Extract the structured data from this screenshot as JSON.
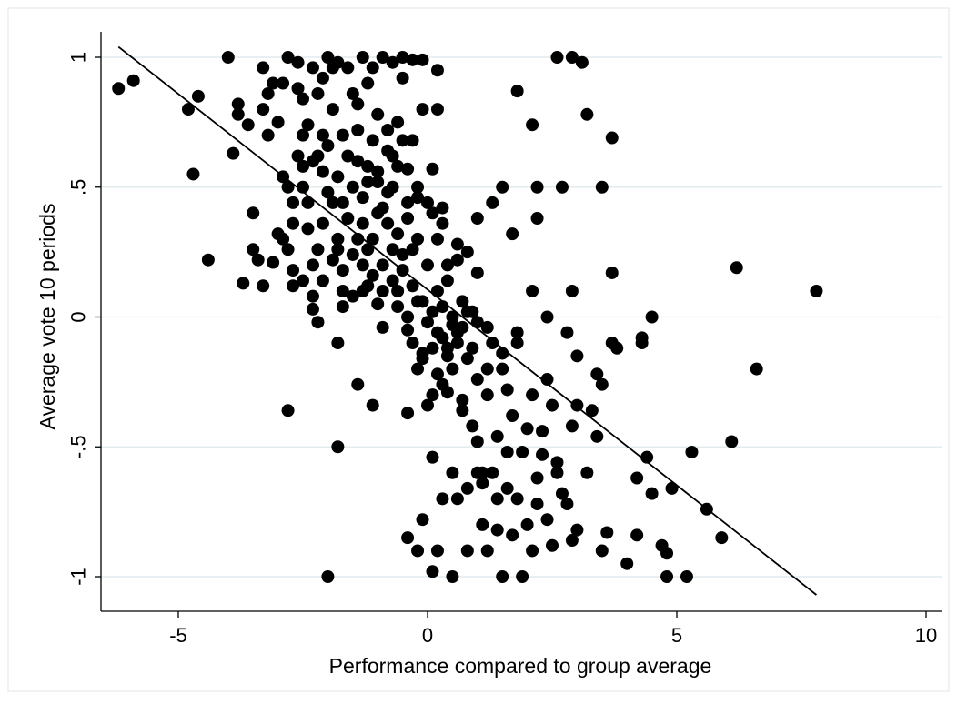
{
  "chart_data": {
    "type": "scatter",
    "title": "",
    "xlabel": "Performance compared to group average",
    "ylabel": "Average vote 10 periods",
    "xlim": [
      -6.5,
      10.5
    ],
    "ylim": [
      -1.1,
      1.1
    ],
    "xticks": [
      -5,
      0,
      5,
      10
    ],
    "xtick_labels": [
      "-5",
      "0",
      "5",
      "10"
    ],
    "yticks": [
      1,
      0.5,
      0,
      -0.5,
      -1
    ],
    "ytick_labels": [
      "1",
      ".5",
      "0",
      "-.5",
      "-1"
    ],
    "grid": "horizontal",
    "legend": "none",
    "colors": {
      "points": "#000000",
      "grid": "#dbe8ec",
      "fit_line": "#000000"
    },
    "fit_line": {
      "x": [
        -6.2,
        7.8
      ],
      "y": [
        1.04,
        -1.07
      ]
    },
    "points": [
      [
        -6.2,
        0.88
      ],
      [
        -5.9,
        0.91
      ],
      [
        -4.8,
        0.8
      ],
      [
        -4.6,
        0.85
      ],
      [
        -4.7,
        0.55
      ],
      [
        -4.4,
        0.22
      ],
      [
        -4.0,
        1.0
      ],
      [
        -3.9,
        0.63
      ],
      [
        -3.8,
        0.82
      ],
      [
        -3.8,
        0.78
      ],
      [
        -3.6,
        0.74
      ],
      [
        -3.5,
        0.4
      ],
      [
        -3.5,
        0.26
      ],
      [
        -3.4,
        0.22
      ],
      [
        -3.3,
        0.8
      ],
      [
        -3.3,
        0.96
      ],
      [
        -3.2,
        0.86
      ],
      [
        -3.2,
        0.7
      ],
      [
        -3.1,
        0.9
      ],
      [
        -3.1,
        0.21
      ],
      [
        -3.0,
        0.75
      ],
      [
        -2.9,
        0.3
      ],
      [
        -2.9,
        0.9
      ],
      [
        -2.8,
        0.26
      ],
      [
        -2.8,
        0.5
      ],
      [
        -2.7,
        0.44
      ],
      [
        -2.7,
        0.12
      ],
      [
        -2.6,
        0.98
      ],
      [
        -2.6,
        0.88
      ],
      [
        -2.5,
        0.58
      ],
      [
        -2.5,
        0.7
      ],
      [
        -2.4,
        0.74
      ],
      [
        -2.4,
        0.34
      ],
      [
        -2.3,
        0.2
      ],
      [
        -2.3,
        0.03
      ],
      [
        -2.2,
        0.62
      ],
      [
        -2.2,
        0.86
      ],
      [
        -2.1,
        0.92
      ],
      [
        -2.1,
        0.36
      ],
      [
        -2.0,
        0.48
      ],
      [
        -2.0,
        0.66
      ],
      [
        -1.9,
        0.96
      ],
      [
        -1.9,
        0.8
      ],
      [
        -1.8,
        0.54
      ],
      [
        -1.8,
        0.3
      ],
      [
        -1.7,
        0.1
      ],
      [
        -1.7,
        0.44
      ],
      [
        -1.6,
        0.96
      ],
      [
        -1.6,
        0.62
      ],
      [
        -1.5,
        0.24
      ],
      [
        -1.5,
        0.5
      ],
      [
        -1.4,
        0.72
      ],
      [
        -1.4,
        0.82
      ],
      [
        -1.3,
        0.46
      ],
      [
        -1.3,
        0.36
      ],
      [
        -1.2,
        0.12
      ],
      [
        -1.2,
        0.58
      ],
      [
        -1.1,
        0.68
      ],
      [
        -1.1,
        0.3
      ],
      [
        -1.0,
        0.52
      ],
      [
        -1.0,
        0.05
      ],
      [
        -0.9,
        0.2
      ],
      [
        -0.9,
        0.42
      ],
      [
        -0.8,
        0.64
      ],
      [
        -0.8,
        0.36
      ],
      [
        -0.7,
        0.5
      ],
      [
        -0.7,
        0.26
      ],
      [
        -0.6,
        0.58
      ],
      [
        -0.6,
        0.1
      ],
      [
        -0.5,
        0.68
      ],
      [
        -0.5,
        0.24
      ],
      [
        -0.4,
        0.0
      ],
      [
        -0.4,
        0.44
      ],
      [
        -0.3,
        0.12
      ],
      [
        -0.3,
        -0.1
      ],
      [
        -0.2,
        0.3
      ],
      [
        -0.2,
        0.5
      ],
      [
        -0.1,
        0.06
      ],
      [
        -0.1,
        -0.16
      ],
      [
        0.0,
        0.2
      ],
      [
        0.0,
        -0.02
      ],
      [
        0.1,
        0.4
      ],
      [
        0.1,
        -0.3
      ],
      [
        0.2,
        0.1
      ],
      [
        0.2,
        -0.06
      ],
      [
        0.3,
        -0.26
      ],
      [
        0.3,
        0.04
      ],
      [
        0.4,
        -0.12
      ],
      [
        0.4,
        0.14
      ],
      [
        0.5,
        -0.2
      ],
      [
        0.5,
        0.0
      ],
      [
        0.6,
        -0.1
      ],
      [
        0.6,
        0.22
      ],
      [
        0.7,
        -0.32
      ],
      [
        0.7,
        -0.04
      ],
      [
        0.8,
        0.02
      ],
      [
        0.8,
        -0.16
      ],
      [
        0.9,
        -0.42
      ],
      [
        1.0,
        -0.02
      ],
      [
        1.0,
        -0.24
      ],
      [
        1.1,
        -0.6
      ],
      [
        1.2,
        -0.3
      ],
      [
        1.3,
        -0.1
      ],
      [
        1.4,
        -0.46
      ],
      [
        1.5,
        -0.2
      ],
      [
        1.6,
        -0.66
      ],
      [
        1.7,
        -0.38
      ],
      [
        1.8,
        -0.1
      ],
      [
        1.9,
        -0.52
      ],
      [
        2.0,
        -0.8
      ],
      [
        2.1,
        -0.3
      ],
      [
        2.2,
        -0.62
      ],
      [
        2.3,
        -0.44
      ],
      [
        2.4,
        -0.78
      ],
      [
        2.5,
        -0.34
      ],
      [
        2.6,
        -0.56
      ],
      [
        2.8,
        -0.06
      ],
      [
        2.9,
        -0.86
      ],
      [
        3.0,
        -0.34
      ],
      [
        3.2,
        -0.6
      ],
      [
        3.4,
        -0.22
      ],
      [
        3.5,
        -0.9
      ],
      [
        3.7,
        -0.1
      ],
      [
        4.0,
        -0.95
      ],
      [
        4.2,
        -0.62
      ],
      [
        4.3,
        -0.1
      ],
      [
        4.5,
        -0.68
      ],
      [
        4.7,
        -0.88
      ],
      [
        4.8,
        -1.0
      ],
      [
        5.2,
        -1.0
      ],
      [
        5.3,
        -0.52
      ],
      [
        5.6,
        -0.74
      ],
      [
        5.9,
        -0.85
      ],
      [
        6.1,
        -0.48
      ],
      [
        6.6,
        -0.2
      ],
      [
        4.5,
        0.0
      ],
      [
        4.3,
        -0.08
      ],
      [
        3.8,
        -0.12
      ],
      [
        3.3,
        -0.36
      ],
      [
        2.7,
        -0.68
      ],
      [
        1.5,
        -1.0
      ],
      [
        1.9,
        -1.0
      ],
      [
        0.5,
        -1.0
      ],
      [
        0.1,
        -0.98
      ],
      [
        -0.2,
        -0.9
      ],
      [
        -0.4,
        -0.85
      ],
      [
        0.2,
        -0.9
      ],
      [
        0.8,
        -0.9
      ],
      [
        1.2,
        -0.9
      ],
      [
        1.4,
        -0.82
      ],
      [
        2.1,
        -0.9
      ],
      [
        2.5,
        -0.88
      ],
      [
        3.0,
        -0.82
      ],
      [
        -2.0,
        -1.0
      ],
      [
        -1.8,
        -0.5
      ],
      [
        -2.8,
        -0.36
      ],
      [
        -1.8,
        -0.1
      ],
      [
        -1.4,
        -0.26
      ],
      [
        -1.1,
        -0.34
      ],
      [
        -0.9,
        -0.04
      ],
      [
        -0.4,
        -0.37
      ],
      [
        0.1,
        -0.54
      ],
      [
        0.6,
        -0.7
      ],
      [
        1.0,
        -0.6
      ],
      [
        1.1,
        -0.8
      ],
      [
        1.6,
        -0.52
      ],
      [
        2.2,
        -0.72
      ],
      [
        2.6,
        -0.6
      ],
      [
        3.6,
        -0.83
      ],
      [
        4.9,
        -0.66
      ],
      [
        2.6,
        1.0
      ],
      [
        2.9,
        1.0
      ],
      [
        3.1,
        0.98
      ],
      [
        1.8,
        0.87
      ],
      [
        2.1,
        0.74
      ],
      [
        3.2,
        0.78
      ],
      [
        3.7,
        0.69
      ],
      [
        2.2,
        0.38
      ],
      [
        2.2,
        0.5
      ],
      [
        2.7,
        0.5
      ],
      [
        3.5,
        0.5
      ],
      [
        1.5,
        0.5
      ],
      [
        1.3,
        0.44
      ],
      [
        1.0,
        0.38
      ],
      [
        1.7,
        0.32
      ],
      [
        3.7,
        0.17
      ],
      [
        2.1,
        0.1
      ],
      [
        2.9,
        0.1
      ],
      [
        6.2,
        0.19
      ],
      [
        7.8,
        0.1
      ],
      [
        2.4,
        0.0
      ],
      [
        3.0,
        -0.15
      ],
      [
        1.8,
        -0.06
      ],
      [
        1.2,
        -0.04
      ],
      [
        0.9,
        0.02
      ],
      [
        0.7,
        0.06
      ],
      [
        0.5,
        -0.03
      ],
      [
        0.3,
        -0.08
      ],
      [
        0.1,
        0.02
      ],
      [
        -0.1,
        -0.14
      ],
      [
        0.4,
        0.2
      ],
      [
        0.8,
        0.25
      ],
      [
        1.0,
        0.17
      ],
      [
        0.6,
        0.28
      ],
      [
        0.2,
        0.3
      ],
      [
        -0.3,
        0.26
      ],
      [
        -0.5,
        0.18
      ],
      [
        -0.7,
        0.14
      ],
      [
        -0.9,
        0.1
      ],
      [
        -1.1,
        0.16
      ],
      [
        -1.3,
        0.2
      ],
      [
        -1.5,
        0.08
      ],
      [
        -1.7,
        0.18
      ],
      [
        -1.9,
        0.22
      ],
      [
        -2.1,
        0.14
      ],
      [
        -2.3,
        0.08
      ],
      [
        -2.5,
        0.14
      ],
      [
        -2.7,
        0.18
      ],
      [
        -3.0,
        0.32
      ],
      [
        -3.3,
        0.12
      ],
      [
        -3.7,
        0.13
      ],
      [
        -0.1,
        0.8
      ],
      [
        0.2,
        0.8
      ],
      [
        -0.3,
        0.68
      ],
      [
        -0.6,
        0.75
      ],
      [
        -0.8,
        0.72
      ],
      [
        -1.0,
        0.78
      ],
      [
        -1.2,
        0.9
      ],
      [
        -1.5,
        0.86
      ],
      [
        -1.8,
        0.98
      ],
      [
        -2.0,
        1.0
      ],
      [
        -2.3,
        0.96
      ],
      [
        -2.8,
        1.0
      ],
      [
        -0.9,
        1.0
      ],
      [
        -0.7,
        0.98
      ],
      [
        -0.5,
        1.0
      ],
      [
        -0.3,
        0.99
      ],
      [
        -0.1,
        0.99
      ],
      [
        0.2,
        0.95
      ],
      [
        -0.5,
        0.92
      ],
      [
        -1.3,
        1.0
      ],
      [
        -1.1,
        0.96
      ],
      [
        -0.4,
        0.57
      ],
      [
        0.1,
        0.57
      ],
      [
        -0.2,
        0.46
      ],
      [
        0.3,
        0.42
      ],
      [
        -0.6,
        0.32
      ],
      [
        -1.3,
        0.1
      ],
      [
        -1.7,
        0.04
      ],
      [
        -2.2,
        -0.02
      ],
      [
        0.0,
        -0.34
      ],
      [
        0.4,
        -0.29
      ],
      [
        0.7,
        -0.36
      ],
      [
        1.0,
        -0.48
      ],
      [
        1.3,
        -0.6
      ],
      [
        1.8,
        -0.7
      ],
      [
        2.0,
        -0.43
      ],
      [
        2.3,
        -0.53
      ],
      [
        2.8,
        -0.72
      ],
      [
        3.4,
        -0.46
      ],
      [
        4.2,
        -0.84
      ],
      [
        4.4,
        -0.54
      ],
      [
        4.8,
        -0.91
      ],
      [
        1.4,
        -0.7
      ],
      [
        1.7,
        -0.84
      ],
      [
        0.8,
        -0.66
      ],
      [
        0.3,
        -0.7
      ],
      [
        -0.1,
        -0.78
      ],
      [
        0.5,
        -0.6
      ],
      [
        1.1,
        -0.64
      ],
      [
        1.6,
        -0.28
      ],
      [
        2.4,
        -0.24
      ],
      [
        2.9,
        -0.42
      ],
      [
        3.5,
        -0.26
      ],
      [
        -0.4,
        -0.05
      ],
      [
        -0.2,
        -0.2
      ],
      [
        0.1,
        -0.12
      ],
      [
        0.4,
        -0.15
      ],
      [
        0.6,
        -0.06
      ],
      [
        0.9,
        -0.12
      ],
      [
        1.2,
        -0.2
      ],
      [
        1.5,
        -0.14
      ],
      [
        0.3,
        0.36
      ],
      [
        0.0,
        0.44
      ],
      [
        -0.4,
        0.38
      ],
      [
        -0.8,
        0.48
      ],
      [
        -1.0,
        0.4
      ],
      [
        -1.2,
        0.52
      ],
      [
        -1.4,
        0.3
      ],
      [
        -1.6,
        0.38
      ],
      [
        -1.9,
        0.44
      ],
      [
        -2.1,
        0.56
      ],
      [
        -2.3,
        0.6
      ],
      [
        -2.5,
        0.5
      ],
      [
        -2.7,
        0.36
      ],
      [
        -2.9,
        0.54
      ],
      [
        -2.5,
        0.84
      ],
      [
        -2.1,
        0.7
      ],
      [
        -1.7,
        0.7
      ],
      [
        -1.4,
        0.6
      ],
      [
        -1.0,
        0.56
      ],
      [
        -0.7,
        0.62
      ],
      [
        -2.4,
        0.44
      ],
      [
        -2.6,
        0.62
      ],
      [
        -2.2,
        0.26
      ],
      [
        -1.8,
        0.26
      ],
      [
        -1.2,
        0.26
      ],
      [
        -0.6,
        0.04
      ],
      [
        -0.2,
        0.06
      ],
      [
        0.2,
        -0.22
      ]
    ]
  }
}
